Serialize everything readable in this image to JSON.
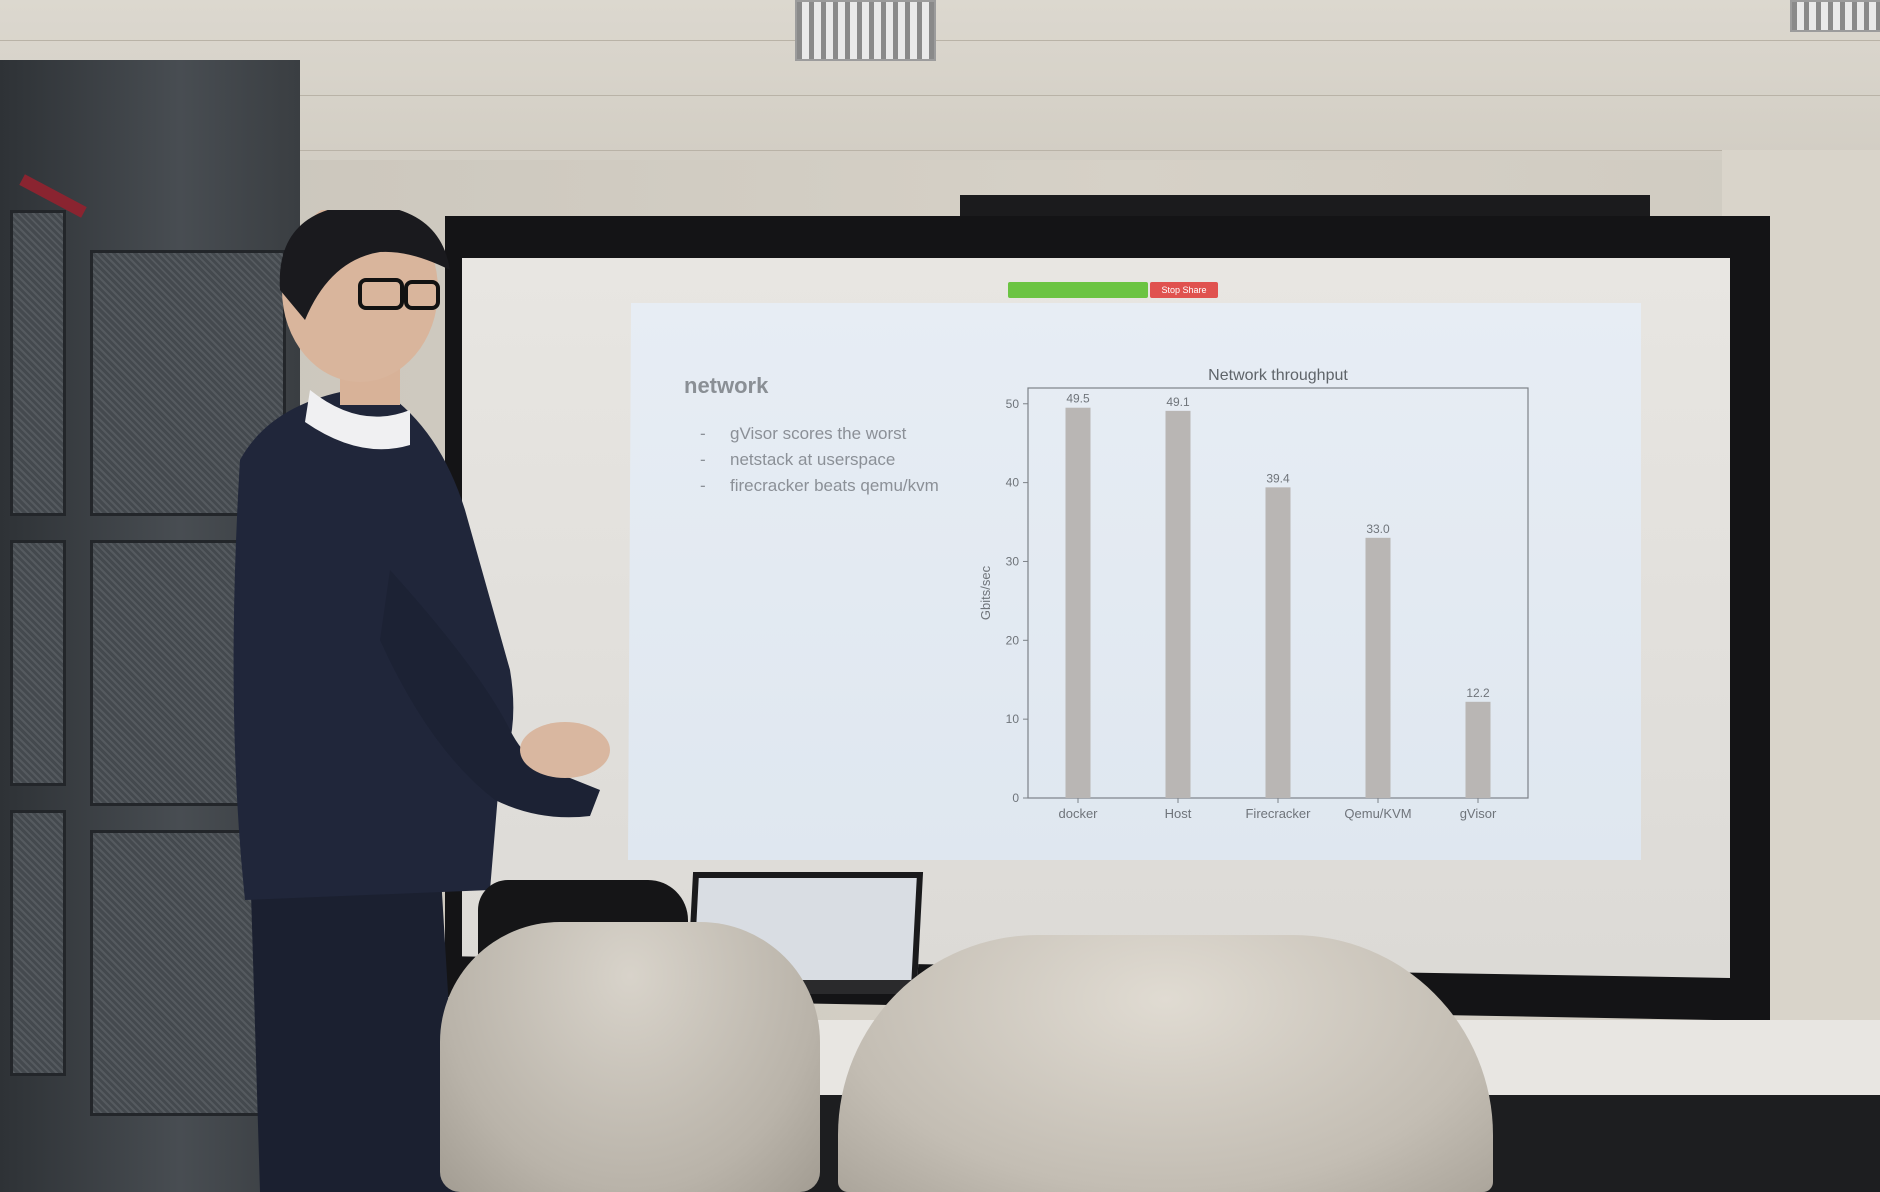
{
  "slide": {
    "title": "network",
    "bullets": [
      {
        "dash": "-",
        "text": "gVisor scores the worst"
      },
      {
        "dash": "-",
        "text": "netstack at userspace"
      },
      {
        "dash": "-",
        "text": "firecracker beats qemu/kvm"
      }
    ]
  },
  "zoom_bar": {
    "stop_share_label": "Stop Share"
  },
  "colors": {
    "bar": "#b9b6b4",
    "slide_bg": "#e3eaf2",
    "text": "#6f747a"
  },
  "chart_data": {
    "type": "bar",
    "title": "Network throughput",
    "xlabel": "",
    "ylabel": "Gbits/sec",
    "categories": [
      "docker",
      "Host",
      "Firecracker",
      "Qemu/KVM",
      "gVisor"
    ],
    "values": [
      49.5,
      49.1,
      39.4,
      33.0,
      12.2
    ],
    "value_labels": [
      "49.5",
      "49.1",
      "39.4",
      "33.0",
      "12.2"
    ],
    "yticks": [
      0,
      10,
      20,
      30,
      40,
      50
    ],
    "ylim": [
      0,
      52
    ],
    "grid": false,
    "legend": "none"
  }
}
